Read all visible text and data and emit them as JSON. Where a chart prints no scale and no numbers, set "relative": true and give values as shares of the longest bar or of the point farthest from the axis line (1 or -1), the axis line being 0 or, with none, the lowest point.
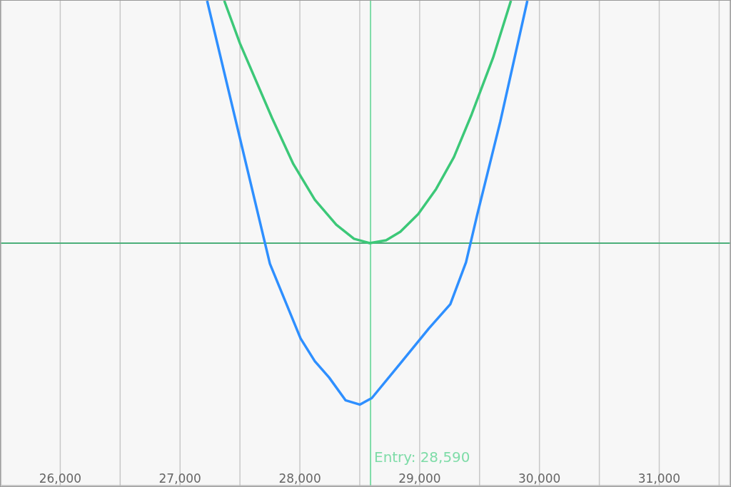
{
  "chart_data": {
    "type": "line",
    "relative": true,
    "xlim": [
      25506,
      31590
    ],
    "xticks": [
      {
        "value": 26000,
        "label": "26,000"
      },
      {
        "value": 26500,
        "label": null
      },
      {
        "value": 27000,
        "label": "27,000"
      },
      {
        "value": 27500,
        "label": null
      },
      {
        "value": 28000,
        "label": "28,000"
      },
      {
        "value": 28500,
        "label": null
      },
      {
        "value": 29000,
        "label": "29,000"
      },
      {
        "value": 29500,
        "label": null
      },
      {
        "value": 30000,
        "label": "30,000"
      },
      {
        "value": 30500,
        "label": null
      },
      {
        "value": 31000,
        "label": "31,000"
      },
      {
        "value": 31500,
        "label": null
      }
    ],
    "grid": "x",
    "tick_labels": "x",
    "legend": false,
    "marker": "none",
    "line_style": "solid",
    "series": [
      {
        "color": "#2e8fff",
        "x": [
          27226,
          27750,
          28006,
          28125,
          28244,
          28381,
          28500,
          28601,
          28839,
          29077,
          29256,
          29387,
          29482,
          29673,
          29899
        ],
        "values": [
          1,
          -0.085,
          -0.393,
          -0.487,
          -0.554,
          -0.648,
          -0.666,
          -0.639,
          -0.496,
          -0.352,
          -0.252,
          -0.079,
          0.12,
          0.501,
          1
        ]
      },
      {
        "color": "#3cc878",
        "x": [
          27369,
          27500,
          27768,
          27946,
          28125,
          28304,
          28452,
          28583,
          28720,
          28839,
          28988,
          29137,
          29286,
          29434,
          29613,
          29762
        ],
        "values": [
          1,
          0.824,
          0.516,
          0.326,
          0.179,
          0.076,
          0.018,
          0,
          0.012,
          0.047,
          0.12,
          0.223,
          0.355,
          0.531,
          0.765,
          1
        ]
      }
    ],
    "ref_lines": [
      {
        "axis": "x",
        "value": 28590,
        "label": "Entry: 28,590",
        "color": "#7fdca8"
      },
      {
        "axis": "y",
        "value": 0,
        "color": "#4caf7a"
      }
    ]
  }
}
